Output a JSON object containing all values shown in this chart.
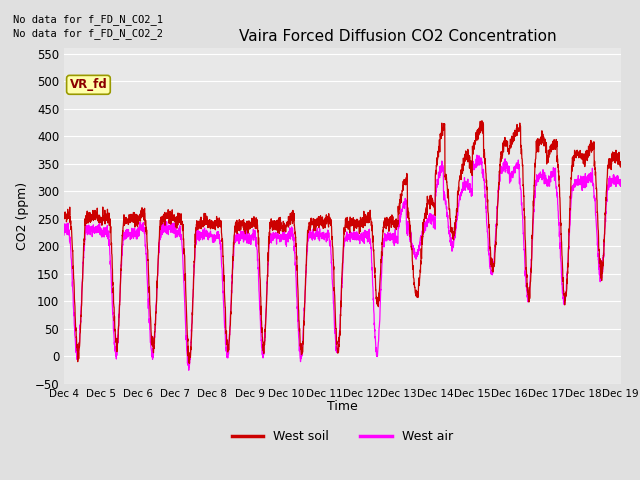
{
  "title": "Vaira Forced Diffusion CO2 Concentration",
  "ylabel": "CO2 (ppm)",
  "xlabel": "Time",
  "no_data_text1": "No data for f_FD_N_CO2_1",
  "no_data_text2": "No data for f_FD_N_CO2_2",
  "vr_fd_label": "VR_fd",
  "legend_soil": "West soil",
  "legend_air": "West air",
  "soil_color": "#cc0000",
  "air_color": "#ff00ff",
  "ylim": [
    -50,
    560
  ],
  "yticks": [
    -50,
    0,
    50,
    100,
    150,
    200,
    250,
    300,
    350,
    400,
    450,
    500,
    550
  ],
  "fig_bg": "#e0e0e0",
  "plot_bg": "#e8e8e8",
  "grid_color": "#ffffff",
  "xtick_labels": [
    "Dec 4",
    "Dec 5",
    "Dec 6",
    "Dec 7",
    "Dec 8",
    "Dec 9",
    "Dec 10",
    "Dec 11",
    "Dec 12",
    "Dec 13",
    "Dec 14",
    "Dec 15",
    "Dec 16",
    "Dec 17",
    "Dec 18",
    "Dec 19"
  ]
}
